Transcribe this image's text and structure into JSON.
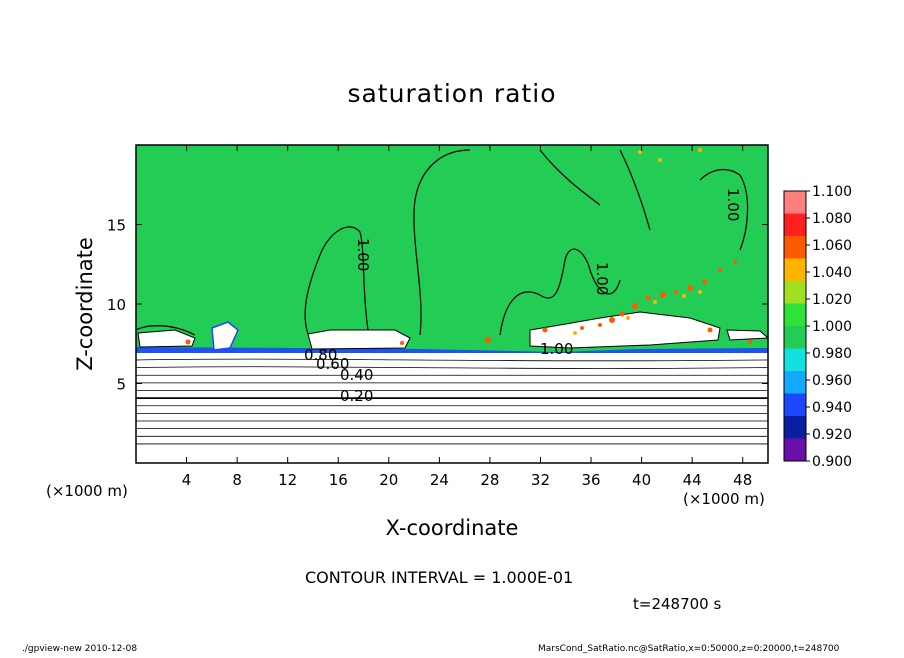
{
  "chart_data": {
    "type": "heatmap",
    "title": "saturation ratio",
    "xlabel": "X-coordinate",
    "ylabel": "Z-coordinate",
    "x_unit_label": "(×1000 m)",
    "x_unit_label_right": "(×1000 m)",
    "xlim": [
      0,
      50
    ],
    "ylim": [
      0,
      20
    ],
    "x_ticks": [
      4,
      8,
      12,
      16,
      20,
      24,
      28,
      32,
      36,
      40,
      44,
      48
    ],
    "y_ticks": [
      5,
      10,
      15
    ],
    "colorbar": {
      "levels": [
        0.9,
        0.92,
        0.94,
        0.96,
        0.98,
        1.0,
        1.02,
        1.04,
        1.06,
        1.08,
        1.1
      ],
      "labels": [
        "0.900",
        "0.920",
        "0.940",
        "0.960",
        "0.980",
        "1.000",
        "1.020",
        "1.040",
        "1.060",
        "1.080",
        "1.100"
      ],
      "colors": [
        "#6a0fa8",
        "#0a1fa0",
        "#1e46ff",
        "#15a8ff",
        "#15e0e0",
        "#22cc55",
        "#2ee23a",
        "#a0e020",
        "#ffb400",
        "#ff5a00",
        "#ff2020",
        "#ff7f7f"
      ]
    },
    "contours": [
      {
        "label": "0.20",
        "z": 4.2
      },
      {
        "label": "0.40",
        "z": 5.3
      },
      {
        "label": "0.60",
        "z": 6.0
      },
      {
        "label": "0.80",
        "z": 6.6
      },
      {
        "label": "1.00",
        "z": 14.0
      },
      {
        "label": "1.00",
        "z": 11.5
      },
      {
        "label": "1.00",
        "z": 16.5
      },
      {
        "label": "1.00",
        "z": 7.0
      }
    ],
    "contour_interval": "CONTOUR INTERVAL = 1.000E-01",
    "time_label": "t=248700 s"
  },
  "footer": {
    "left": "./gpview-new   2010-12-08",
    "right": "MarsCond_SatRatio.nc@SatRatio,x=0:50000,z=0:20000,t=248700"
  }
}
